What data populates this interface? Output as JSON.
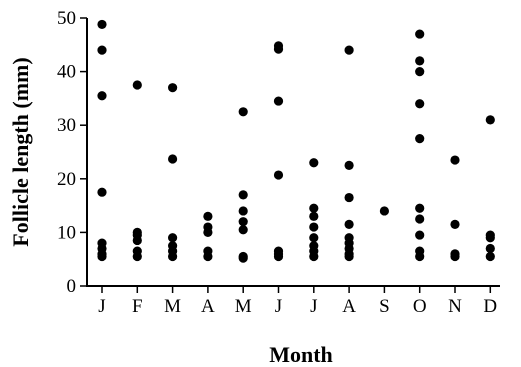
{
  "chart_data": {
    "type": "scatter",
    "title": "",
    "xlabel": "Month",
    "ylabel": "Follicle length (mm)",
    "categories": [
      "J",
      "F",
      "M",
      "A",
      "M",
      "J",
      "J",
      "A",
      "S",
      "O",
      "N",
      "D"
    ],
    "ylim": [
      0,
      50
    ],
    "yticks": [
      0,
      10,
      20,
      30,
      40,
      50
    ],
    "grid": false,
    "legend": "none",
    "point_color": "#000000",
    "points": [
      [
        48.8,
        44.0,
        35.5,
        17.5,
        8.0,
        7.0,
        6.0,
        5.5
      ],
      [
        37.5,
        10.0,
        9.5,
        8.5,
        6.5,
        5.5
      ],
      [
        37.0,
        23.7,
        9.0,
        7.5,
        6.5,
        5.5
      ],
      [
        13.0,
        11.0,
        10.0,
        6.5,
        5.5
      ],
      [
        32.5,
        17.0,
        14.0,
        12.0,
        10.5,
        5.5,
        5.2
      ],
      [
        44.8,
        44.2,
        34.5,
        20.7,
        6.5,
        6.0,
        5.5
      ],
      [
        23.0,
        14.5,
        13.0,
        11.0,
        9.0,
        7.5,
        6.5,
        5.5
      ],
      [
        44.0,
        22.5,
        16.5,
        11.5,
        9.0,
        8.0,
        7.0,
        6.0,
        5.5
      ],
      [
        14.0
      ],
      [
        47.0,
        42.0,
        40.0,
        34.0,
        27.5,
        14.5,
        12.5,
        9.5,
        6.5,
        5.5
      ],
      [
        23.5,
        11.5,
        6.0,
        5.5
      ],
      [
        31.0,
        9.5,
        9.0,
        7.0,
        5.5
      ]
    ]
  }
}
